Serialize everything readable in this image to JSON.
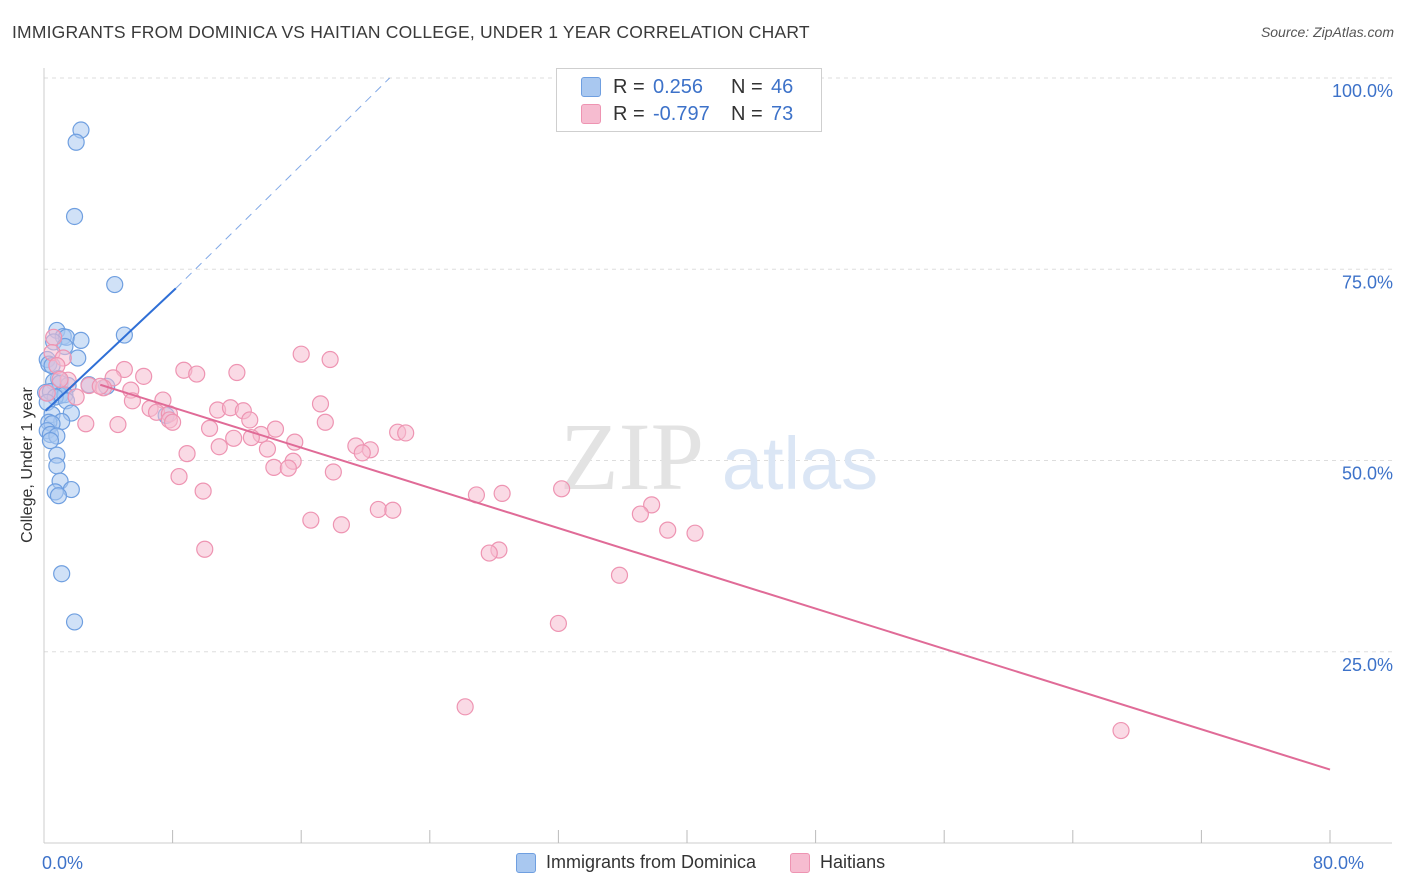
{
  "title": "IMMIGRANTS FROM DOMINICA VS HAITIAN COLLEGE, UNDER 1 YEAR CORRELATION CHART",
  "source": "Source: ZipAtlas.com",
  "watermark": {
    "zip": "ZIP",
    "atlas": "atlas"
  },
  "colors": {
    "blue_fill": "#a9c8f0",
    "blue_stroke": "#6f9fe0",
    "blue_line": "#2f6fd6",
    "pink_fill": "#f6bcd0",
    "pink_stroke": "#ee94b2",
    "pink_line": "#e06b97",
    "axis_text": "#3d72c9",
    "grid": "#dddddd"
  },
  "legend_top": [
    {
      "r_label": "R =",
      "r_value": "0.256",
      "n_label": "N =",
      "n_value": "46",
      "color": "blue"
    },
    {
      "r_label": "R =",
      "r_value": "-0.797",
      "n_label": "N =",
      "n_value": "73",
      "color": "pink"
    }
  ],
  "legend_bottom": [
    {
      "label": "Immigrants from Dominica",
      "color": "blue"
    },
    {
      "label": "Haitians",
      "color": "pink"
    }
  ],
  "chart_data": {
    "type": "scatter",
    "title": "IMMIGRANTS FROM DOMINICA VS HAITIAN COLLEGE, UNDER 1 YEAR CORRELATION CHART",
    "xlabel": "",
    "ylabel": "College, Under 1 year",
    "xlim": [
      0,
      80
    ],
    "ylim": [
      0,
      104
    ],
    "x_tick_labels": [
      {
        "value": 0,
        "label": "0.0%"
      },
      {
        "value": 80,
        "label": "80.0%"
      }
    ],
    "x_minor_ticks": [
      8,
      16,
      24,
      32,
      40,
      48,
      56,
      64,
      72,
      80
    ],
    "y_ticks": [
      {
        "value": 25,
        "label": "25.0%"
      },
      {
        "value": 50,
        "label": "50.0%"
      },
      {
        "value": 75,
        "label": "75.0%"
      },
      {
        "value": 100,
        "label": "100.0%"
      }
    ],
    "series": [
      {
        "name": "Immigrants from Dominica",
        "color": "blue",
        "points": [
          [
            2.3,
            93.2
          ],
          [
            2.0,
            91.6
          ],
          [
            1.9,
            81.9
          ],
          [
            4.4,
            73.0
          ],
          [
            5.0,
            66.4
          ],
          [
            0.8,
            67.0
          ],
          [
            1.2,
            66.2
          ],
          [
            1.4,
            66.1
          ],
          [
            2.3,
            65.7
          ],
          [
            0.6,
            65.5
          ],
          [
            1.3,
            64.9
          ],
          [
            2.1,
            63.4
          ],
          [
            0.2,
            63.2
          ],
          [
            0.3,
            62.6
          ],
          [
            0.5,
            62.4
          ],
          [
            0.9,
            60.7
          ],
          [
            0.6,
            60.3
          ],
          [
            1.0,
            60.1
          ],
          [
            1.5,
            59.8
          ],
          [
            2.8,
            59.9
          ],
          [
            3.9,
            59.7
          ],
          [
            0.1,
            58.9
          ],
          [
            0.4,
            59.0
          ],
          [
            1.0,
            58.5
          ],
          [
            1.3,
            58.6
          ],
          [
            0.7,
            58.3
          ],
          [
            1.4,
            57.8
          ],
          [
            0.2,
            57.6
          ],
          [
            1.7,
            56.2
          ],
          [
            0.5,
            56.0
          ],
          [
            7.6,
            55.9
          ],
          [
            1.1,
            55.1
          ],
          [
            0.3,
            55.0
          ],
          [
            0.5,
            54.8
          ],
          [
            0.2,
            53.9
          ],
          [
            0.4,
            53.4
          ],
          [
            0.8,
            53.2
          ],
          [
            0.4,
            52.6
          ],
          [
            0.8,
            50.7
          ],
          [
            0.8,
            49.3
          ],
          [
            1.0,
            47.3
          ],
          [
            1.7,
            46.2
          ],
          [
            0.7,
            45.9
          ],
          [
            0.9,
            45.4
          ],
          [
            1.1,
            35.2
          ],
          [
            1.9,
            28.9
          ]
        ],
        "trend": {
          "x0": 0.1,
          "y0": 56.5,
          "x1": 8.2,
          "y1": 72.5,
          "dash_to_x": 21.5,
          "dash_to_y": 100.0
        }
      },
      {
        "name": "Haitians",
        "color": "pink",
        "points": [
          [
            0.6,
            66.1
          ],
          [
            0.5,
            64.1
          ],
          [
            1.2,
            63.4
          ],
          [
            0.8,
            62.4
          ],
          [
            16.0,
            63.9
          ],
          [
            17.8,
            63.2
          ],
          [
            5.0,
            61.9
          ],
          [
            8.7,
            61.8
          ],
          [
            9.5,
            61.3
          ],
          [
            12.0,
            61.5
          ],
          [
            6.2,
            61.0
          ],
          [
            4.3,
            60.8
          ],
          [
            1.5,
            60.5
          ],
          [
            2.8,
            59.8
          ],
          [
            3.7,
            59.5
          ],
          [
            5.4,
            59.2
          ],
          [
            0.2,
            58.8
          ],
          [
            2.0,
            58.3
          ],
          [
            5.5,
            57.8
          ],
          [
            7.4,
            57.9
          ],
          [
            17.2,
            57.4
          ],
          [
            6.6,
            56.8
          ],
          [
            10.8,
            56.6
          ],
          [
            11.6,
            56.9
          ],
          [
            12.4,
            56.5
          ],
          [
            7.0,
            56.3
          ],
          [
            7.8,
            56.1
          ],
          [
            7.8,
            55.3
          ],
          [
            8.0,
            55.0
          ],
          [
            12.8,
            55.3
          ],
          [
            17.5,
            55.0
          ],
          [
            2.6,
            54.8
          ],
          [
            4.6,
            54.7
          ],
          [
            10.3,
            54.2
          ],
          [
            14.4,
            54.1
          ],
          [
            13.5,
            53.4
          ],
          [
            12.9,
            53.0
          ],
          [
            11.8,
            52.9
          ],
          [
            22.0,
            53.7
          ],
          [
            22.5,
            53.6
          ],
          [
            15.6,
            52.4
          ],
          [
            19.4,
            51.9
          ],
          [
            20.3,
            51.4
          ],
          [
            10.9,
            51.8
          ],
          [
            13.9,
            51.5
          ],
          [
            19.8,
            51.0
          ],
          [
            8.9,
            50.9
          ],
          [
            15.5,
            49.9
          ],
          [
            14.3,
            49.1
          ],
          [
            15.2,
            49.0
          ],
          [
            18.0,
            48.5
          ],
          [
            8.4,
            47.9
          ],
          [
            9.9,
            46.0
          ],
          [
            26.9,
            45.5
          ],
          [
            28.5,
            45.7
          ],
          [
            32.2,
            46.3
          ],
          [
            37.8,
            44.2
          ],
          [
            20.8,
            43.6
          ],
          [
            21.7,
            43.5
          ],
          [
            37.1,
            43.0
          ],
          [
            16.6,
            42.2
          ],
          [
            18.5,
            41.6
          ],
          [
            38.8,
            40.9
          ],
          [
            40.5,
            40.5
          ],
          [
            10.0,
            38.4
          ],
          [
            28.3,
            38.3
          ],
          [
            27.7,
            37.9
          ],
          [
            35.8,
            35.0
          ],
          [
            32.0,
            28.7
          ],
          [
            26.2,
            17.8
          ],
          [
            67.0,
            14.7
          ],
          [
            3.5,
            59.7
          ],
          [
            1.0,
            60.6
          ]
        ],
        "trend": {
          "x0": 3.5,
          "y0": 59.9,
          "x1": 80.0,
          "y1": 9.6
        }
      }
    ]
  }
}
